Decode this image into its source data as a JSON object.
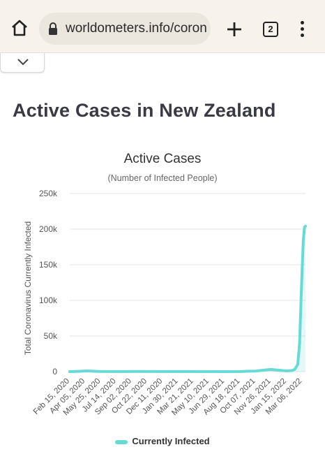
{
  "browser": {
    "url": "worldometers.info/coron",
    "tab_count": "2",
    "icons": [
      "home-icon",
      "lock-icon",
      "plus-icon",
      "tab-switcher-icon",
      "more-vert-icon",
      "chevron-down-icon"
    ]
  },
  "page": {
    "title": "Active Cases in New Zealand"
  },
  "chart_data": {
    "type": "area",
    "title": "Active Cases",
    "subtitle": "(Number of Infected People)",
    "ylabel": "Total Coronavirus Currently Infected",
    "xlabel": "",
    "ylim": [
      0,
      250000
    ],
    "yticks": [
      0,
      50000,
      100000,
      150000,
      200000,
      250000
    ],
    "ytick_labels": [
      "0",
      "50k",
      "100k",
      "150k",
      "200k",
      "250k"
    ],
    "x_tick_labels": [
      "Feb 15, 2020",
      "Apr 05, 2020",
      "May 25, 2020",
      "Jul 14, 2020",
      "Sep 02, 2020",
      "Oct 22, 2020",
      "Dec 11, 2020",
      "Jan 30, 2021",
      "Mar 21, 2021",
      "May 10, 2021",
      "Jun 29, 2021",
      "Aug 18, 2021",
      "Oct 07, 2021",
      "Nov 26, 2021",
      "Jan 15, 2022",
      "Mar 06, 2022"
    ],
    "x_range": [
      "Feb 15, 2020",
      "Mar 17, 2022"
    ],
    "grid": true,
    "legend_position": "bottom",
    "color": "#66dbd6",
    "series": [
      {
        "name": "Currently Infected",
        "points": [
          [
            "Feb 15, 2020",
            0
          ],
          [
            "Mar 20, 2020",
            500
          ],
          [
            "Apr 10, 2020",
            1000
          ],
          [
            "May 20, 2020",
            200
          ],
          [
            "Jul 14, 2020",
            50
          ],
          [
            "Aug 20, 2020",
            100
          ],
          [
            "Sep 15, 2020",
            150
          ],
          [
            "Dec 11, 2020",
            60
          ],
          [
            "Mar 21, 2021",
            80
          ],
          [
            "Jun 29, 2021",
            40
          ],
          [
            "Aug 18, 2021",
            50
          ],
          [
            "Sep 15, 2021",
            600
          ],
          [
            "Oct 07, 2021",
            800
          ],
          [
            "Nov 10, 2021",
            2500
          ],
          [
            "Nov 26, 2021",
            3000
          ],
          [
            "Dec 20, 2021",
            2000
          ],
          [
            "Jan 15, 2022",
            1000
          ],
          [
            "Feb 01, 2022",
            1500
          ],
          [
            "Feb 10, 2022",
            3000
          ],
          [
            "Feb 20, 2022",
            10000
          ],
          [
            "Feb 26, 2022",
            40000
          ],
          [
            "Mar 02, 2022",
            90000
          ],
          [
            "Mar 06, 2022",
            140000
          ],
          [
            "Mar 10, 2022",
            185000
          ],
          [
            "Mar 14, 2022",
            203000
          ],
          [
            "Mar 17, 2022",
            204000
          ]
        ]
      }
    ]
  }
}
